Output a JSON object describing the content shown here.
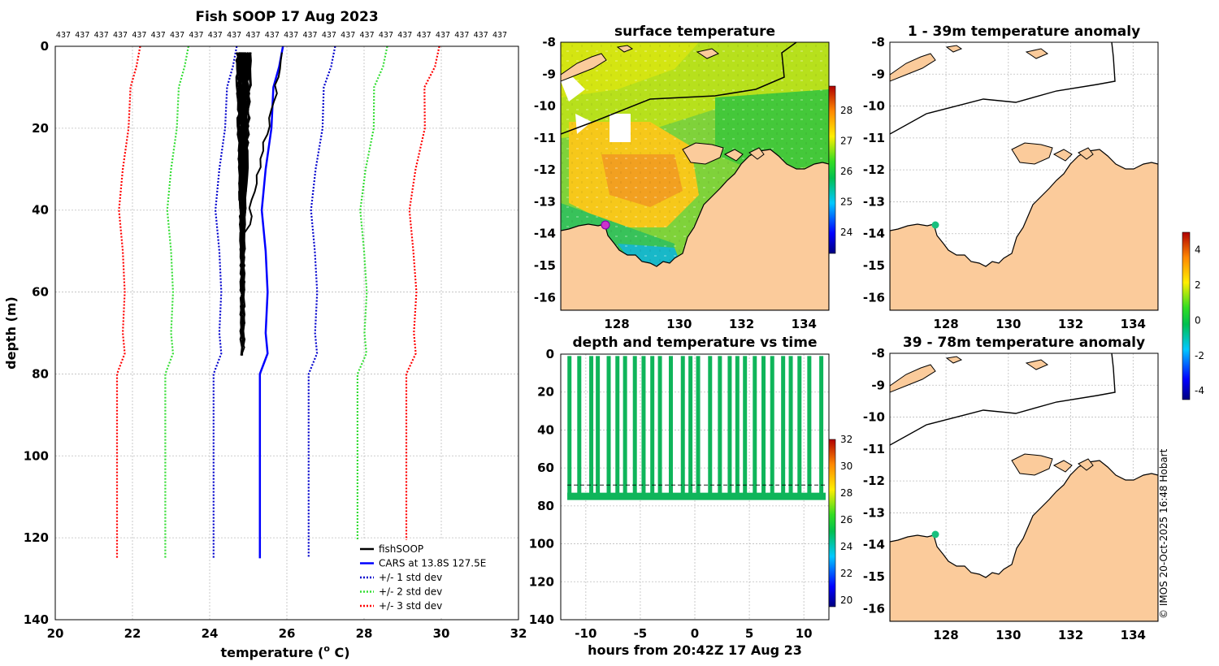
{
  "colors": {
    "fish": "#000000",
    "cars": "#0000ff",
    "std1": "#0000cc",
    "std2": "#33dd33",
    "std3": "#ff0000",
    "land": "#fbcb9b",
    "track": "#0fb55a",
    "marker": "#18c07e",
    "magenta": "#cc33cc"
  },
  "chart_data": [
    {
      "id": "profile",
      "type": "line",
      "title": "Fish SOOP 17 Aug 2023",
      "xlabel": "temperature (o C)",
      "xlabel_main": "temperature (",
      "xlabel_sup": "o",
      "xlabel_tail": " C)",
      "ylabel": "depth (m)",
      "xlim": [
        20,
        32
      ],
      "ylim": [
        140,
        0
      ],
      "xticks": [
        20,
        22,
        24,
        26,
        28,
        30,
        32
      ],
      "yticks": [
        0,
        20,
        40,
        60,
        80,
        100,
        120,
        140
      ],
      "top_counts": [
        "437",
        "437",
        "437",
        "437",
        "437",
        "437",
        "437",
        "437",
        "437",
        "437",
        "437",
        "437",
        "437",
        "437",
        "437",
        "437",
        "437",
        "437",
        "437",
        "437",
        "437",
        "437",
        "437",
        "437"
      ],
      "legend": [
        "fishSOOP",
        "CARS at 13.8S 127.5E",
        "+/- 1 std dev",
        "+/- 2 std dev",
        "+/- 3 std dev"
      ],
      "cars_depth": [
        0,
        5,
        10,
        20,
        30,
        40,
        50,
        60,
        70,
        75,
        80,
        125
      ],
      "cars_temp": [
        25.9,
        25.8,
        25.65,
        25.6,
        25.45,
        25.35,
        25.45,
        25.5,
        25.45,
        25.5,
        25.3,
        25.3
      ],
      "std_offsets": [
        1.0,
        2.0,
        3.0
      ],
      "fish_depth_max": 78,
      "fish_mean_surface": 24.9,
      "fish_mean_bottom": 24.85
    },
    {
      "id": "sst",
      "type": "heatmap",
      "title": "surface temperature",
      "xticks": [
        128,
        130,
        132,
        134
      ],
      "yticks": [
        -8,
        -9,
        -10,
        -11,
        -12,
        -13,
        -14,
        -15,
        -16
      ],
      "xlim": [
        126.2,
        134.8
      ],
      "ylim": [
        -16.4,
        -8
      ],
      "colorbar_ticks": [
        24,
        25,
        26,
        27,
        28
      ],
      "colorbar_range": [
        23.3,
        28.8
      ]
    },
    {
      "id": "anom1",
      "type": "heatmap",
      "title": "1 - 39m temperature anomaly",
      "xticks": [
        128,
        130,
        132,
        134
      ],
      "yticks": [
        -8,
        -9,
        -10,
        -11,
        -12,
        -13,
        -14,
        -15,
        -16
      ],
      "xlim": [
        126.2,
        134.8
      ],
      "ylim": [
        -16.4,
        -8
      ],
      "colorbar_ticks": [
        4,
        2,
        0,
        -2,
        -4
      ],
      "colorbar_range": [
        -4.5,
        5
      ]
    },
    {
      "id": "anom2",
      "type": "heatmap",
      "title": "39 - 78m temperature anomaly",
      "xticks": [
        128,
        130,
        132,
        134
      ],
      "yticks": [
        -8,
        -9,
        -10,
        -11,
        -12,
        -13,
        -14,
        -15,
        -16
      ],
      "xlim": [
        126.2,
        134.8
      ],
      "ylim": [
        -16.4,
        -8
      ]
    },
    {
      "id": "timeseries",
      "type": "scatter",
      "title": "depth and temperature vs time",
      "xlabel": "hours from 20:42Z 17 Aug 23",
      "xlim": [
        -12.3,
        12.3
      ],
      "ylim": [
        140,
        0
      ],
      "xticks": [
        -10,
        -5,
        0,
        5,
        10
      ],
      "yticks": [
        0,
        20,
        40,
        60,
        80,
        100,
        120,
        140
      ],
      "tow_hours": [
        -11.5,
        -10.6,
        -9.5,
        -8.9,
        -7.9,
        -7.1,
        -6.4,
        -5.5,
        -4.7,
        -3.9,
        -3.2,
        -2.2,
        -1.1,
        -0.4,
        0.3,
        1.4,
        2.3,
        3.2,
        3.9,
        4.6,
        5.5,
        6.3,
        7.1,
        8.1,
        8.8,
        9.6,
        10.5,
        11.6
      ],
      "bottom_depth": 75,
      "dashed_depth": 69,
      "colorbar_ticks": [
        32,
        30,
        28,
        26,
        24,
        22,
        20
      ],
      "colorbar_range": [
        19.5,
        32
      ]
    }
  ],
  "credit": "© IMOS 20-Oct-2025 16:48 Hobart"
}
